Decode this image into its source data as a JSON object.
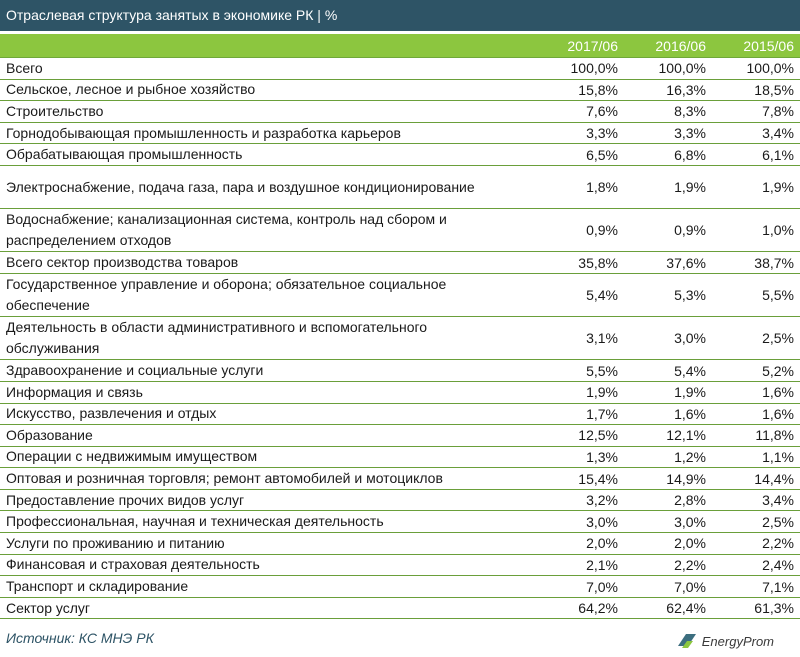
{
  "title": "Отраслевая структура занятых в экономике РК | %",
  "columns": [
    "2017/06",
    "2016/06",
    "2015/06"
  ],
  "rows": [
    {
      "label": "Всего",
      "values": [
        "100,0%",
        "100,0%",
        "100,0%"
      ],
      "lines": 1
    },
    {
      "label": "Сельское, лесное и рыбное хозяйство",
      "values": [
        "15,8%",
        "16,3%",
        "18,5%"
      ],
      "lines": 1
    },
    {
      "label": "Строительство",
      "values": [
        "7,6%",
        "8,3%",
        "7,8%"
      ],
      "lines": 1
    },
    {
      "label": "Горнодобывающая промышленность и разработка карьеров",
      "values": [
        "3,3%",
        "3,3%",
        "3,4%"
      ],
      "lines": 1
    },
    {
      "label": "Обрабатывающая промышленность",
      "values": [
        "6,5%",
        "6,8%",
        "6,1%"
      ],
      "lines": 1
    },
    {
      "label": "Электроснабжение, подача газа, пара и воздушное кондиционирование",
      "values": [
        "1,8%",
        "1,9%",
        "1,9%"
      ],
      "lines": 2
    },
    {
      "label": "Водоснабжение; канализационная система, контроль над сбором и распределением отходов",
      "values": [
        "0,9%",
        "0,9%",
        "1,0%"
      ],
      "lines": 2
    },
    {
      "label": "Всего сектор производства товаров",
      "values": [
        "35,8%",
        "37,6%",
        "38,7%"
      ],
      "lines": 1
    },
    {
      "label": "Государственное управление и оборона; обязательное социальное обеспечение",
      "values": [
        "5,4%",
        "5,3%",
        "5,5%"
      ],
      "lines": 2
    },
    {
      "label": "Деятельность в области административного и вспомогательного обслуживания",
      "values": [
        "3,1%",
        "3,0%",
        "2,5%"
      ],
      "lines": 2
    },
    {
      "label": "Здравоохранение и социальные услуги",
      "values": [
        "5,5%",
        "5,4%",
        "5,2%"
      ],
      "lines": 1
    },
    {
      "label": "Информация и связь",
      "values": [
        "1,9%",
        "1,9%",
        "1,6%"
      ],
      "lines": 1
    },
    {
      "label": "Искусство, развлечения и отдых",
      "values": [
        "1,7%",
        "1,6%",
        "1,6%"
      ],
      "lines": 1
    },
    {
      "label": "Образование",
      "values": [
        "12,5%",
        "12,1%",
        "11,8%"
      ],
      "lines": 1
    },
    {
      "label": "Операции с недвижимым имуществом",
      "values": [
        "1,3%",
        "1,2%",
        "1,1%"
      ],
      "lines": 1
    },
    {
      "label": "Оптовая и розничная торговля; ремонт автомобилей и мотоциклов",
      "values": [
        "15,4%",
        "14,9%",
        "14,4%"
      ],
      "lines": 1
    },
    {
      "label": "Предоставление прочих видов услуг",
      "values": [
        "3,2%",
        "2,8%",
        "3,4%"
      ],
      "lines": 1
    },
    {
      "label": "Профессиональная, научная и техническая деятельность",
      "values": [
        "3,0%",
        "3,0%",
        "2,5%"
      ],
      "lines": 1
    },
    {
      "label": "Услуги по проживанию и питанию",
      "values": [
        "2,0%",
        "2,0%",
        "2,2%"
      ],
      "lines": 1
    },
    {
      "label": "Финансовая и страховая деятельность",
      "values": [
        "2,1%",
        "2,2%",
        "2,4%"
      ],
      "lines": 1
    },
    {
      "label": "Транспорт и складирование",
      "values": [
        "7,0%",
        "7,0%",
        "7,1%"
      ],
      "lines": 1
    },
    {
      "label": "Сектор услуг",
      "values": [
        "64,2%",
        "62,4%",
        "61,3%"
      ],
      "lines": 1
    }
  ],
  "source": "Источник: КС МНЭ РК",
  "brand": "EnergyProm",
  "colors": {
    "title_bg": "#2e5466",
    "header_bg": "#8cc63f",
    "row_rule": "#6a9f3a"
  }
}
